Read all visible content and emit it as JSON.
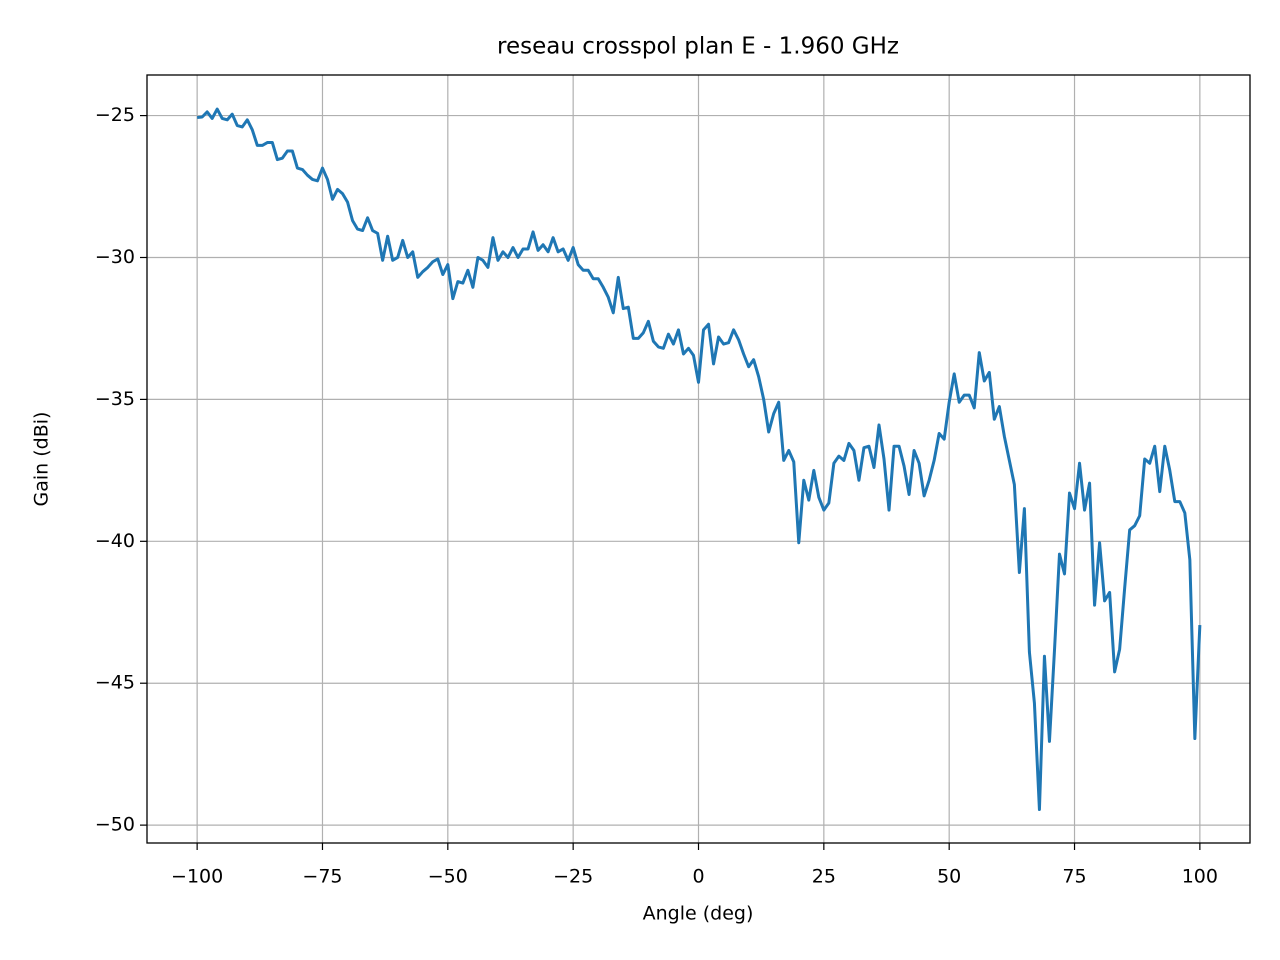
{
  "chart_data": {
    "type": "line",
    "title": "reseau crosspol plan E - 1.960 GHz",
    "xlabel": "Angle (deg)",
    "ylabel": "Gain (dBi)",
    "x": [
      -100,
      -99,
      -98,
      -97,
      -96,
      -95,
      -94,
      -93,
      -92,
      -91,
      -90,
      -89,
      -88,
      -87,
      -86,
      -85,
      -84,
      -83,
      -82,
      -81,
      -80,
      -79,
      -78,
      -77,
      -76,
      -75,
      -74,
      -73,
      -72,
      -71,
      -70,
      -69,
      -68,
      -67,
      -66,
      -65,
      -64,
      -63,
      -62,
      -61,
      -60,
      -59,
      -58,
      -57,
      -56,
      -55,
      -54,
      -53,
      -52,
      -51,
      -50,
      -49,
      -48,
      -47,
      -46,
      -45,
      -44,
      -43,
      -42,
      -41,
      -40,
      -39,
      -38,
      -37,
      -36,
      -35,
      -34,
      -33,
      -32,
      -31,
      -30,
      -29,
      -28,
      -27,
      -26,
      -25,
      -24,
      -23,
      -22,
      -21,
      -20,
      -19,
      -18,
      -17,
      -16,
      -15,
      -14,
      -13,
      -12,
      -11,
      -10,
      -9,
      -8,
      -7,
      -6,
      -5,
      -4,
      -3,
      -2,
      -1,
      0,
      1,
      2,
      3,
      4,
      5,
      6,
      7,
      8,
      9,
      10,
      11,
      12,
      13,
      14,
      15,
      16,
      17,
      18,
      19,
      20,
      21,
      22,
      23,
      24,
      25,
      26,
      27,
      28,
      29,
      30,
      31,
      32,
      33,
      34,
      35,
      36,
      37,
      38,
      39,
      40,
      41,
      42,
      43,
      44,
      45,
      46,
      47,
      48,
      49,
      50,
      51,
      52,
      53,
      54,
      55,
      56,
      57,
      58,
      59,
      60,
      61,
      62,
      63,
      64,
      65,
      66,
      67,
      68,
      69,
      70,
      71,
      72,
      73,
      74,
      75,
      76,
      77,
      78,
      79,
      80,
      81,
      82,
      83,
      84,
      85,
      86,
      87,
      88,
      89,
      90,
      91,
      92,
      93,
      94,
      95,
      96,
      97,
      98,
      99,
      100
    ],
    "series": [
      {
        "name": "crosspol",
        "color": "#1f77b4",
        "values": [
          -25.07,
          -25.05,
          -24.87,
          -25.1,
          -24.77,
          -25.1,
          -25.15,
          -24.95,
          -25.35,
          -25.4,
          -25.15,
          -25.5,
          -26.05,
          -26.05,
          -25.95,
          -25.95,
          -26.55,
          -26.5,
          -26.25,
          -26.25,
          -26.85,
          -26.9,
          -27.1,
          -27.25,
          -27.3,
          -26.85,
          -27.25,
          -27.95,
          -27.6,
          -27.75,
          -28.05,
          -28.7,
          -29.0,
          -29.05,
          -28.6,
          -29.05,
          -29.15,
          -30.1,
          -29.25,
          -30.1,
          -30.0,
          -29.4,
          -30.0,
          -29.8,
          -30.7,
          -30.5,
          -30.35,
          -30.15,
          -30.05,
          -30.6,
          -30.25,
          -31.45,
          -30.85,
          -30.9,
          -30.45,
          -31.05,
          -30.0,
          -30.1,
          -30.35,
          -29.3,
          -30.1,
          -29.8,
          -30.0,
          -29.65,
          -30.0,
          -29.7,
          -29.7,
          -29.1,
          -29.75,
          -29.55,
          -29.8,
          -29.3,
          -29.8,
          -29.7,
          -30.1,
          -29.65,
          -30.25,
          -30.45,
          -30.45,
          -30.75,
          -30.75,
          -31.05,
          -31.4,
          -31.95,
          -30.7,
          -31.8,
          -31.75,
          -32.85,
          -32.85,
          -32.65,
          -32.25,
          -32.95,
          -33.15,
          -33.2,
          -32.7,
          -33.05,
          -32.55,
          -33.4,
          -33.2,
          -33.45,
          -34.4,
          -32.55,
          -32.35,
          -33.75,
          -32.8,
          -33.05,
          -33.0,
          -32.55,
          -32.9,
          -33.4,
          -33.85,
          -33.6,
          -34.2,
          -35.0,
          -36.15,
          -35.5,
          -35.1,
          -37.15,
          -36.8,
          -37.2,
          -40.05,
          -37.85,
          -38.55,
          -37.5,
          -38.45,
          -38.9,
          -38.65,
          -37.25,
          -37.0,
          -37.15,
          -36.55,
          -36.8,
          -37.85,
          -36.7,
          -36.65,
          -37.4,
          -35.9,
          -37.1,
          -38.9,
          -36.65,
          -36.65,
          -37.35,
          -38.35,
          -36.8,
          -37.25,
          -38.4,
          -37.85,
          -37.15,
          -36.2,
          -36.4,
          -35.1,
          -34.1,
          -35.1,
          -34.85,
          -34.85,
          -35.3,
          -33.35,
          -34.35,
          -34.05,
          -35.7,
          -35.25,
          -36.3,
          -37.15,
          -38.0,
          -41.1,
          -38.85,
          -43.9,
          -45.7,
          -49.45,
          -44.05,
          -47.05,
          -43.85,
          -40.45,
          -41.15,
          -38.3,
          -38.85,
          -37.25,
          -38.9,
          -37.95,
          -42.25,
          -40.05,
          -42.1,
          -41.8,
          -44.6,
          -43.8,
          -41.65,
          -39.6,
          -39.45,
          -39.1,
          -37.1,
          -37.25,
          -36.65,
          -38.25,
          -36.65,
          -37.5,
          -38.6,
          -38.6,
          -39.0,
          -40.65,
          -46.95,
          -42.95
        ]
      }
    ],
    "xlim": [
      -110,
      110
    ],
    "ylim": [
      -50.63,
      -23.57
    ],
    "xticks": [
      {
        "value": -100,
        "label": "−100"
      },
      {
        "value": -75,
        "label": "−75"
      },
      {
        "value": -50,
        "label": "−50"
      },
      {
        "value": -25,
        "label": "−25"
      },
      0,
      25,
      50,
      75,
      100
    ],
    "yticks": [
      {
        "value": -50,
        "label": "−50"
      },
      {
        "value": -45,
        "label": "−45"
      },
      {
        "value": -40,
        "label": "−40"
      },
      {
        "value": -35,
        "label": "−35"
      },
      {
        "value": -30,
        "label": "−30"
      },
      {
        "value": -25,
        "label": "−25"
      }
    ],
    "grid": true
  }
}
